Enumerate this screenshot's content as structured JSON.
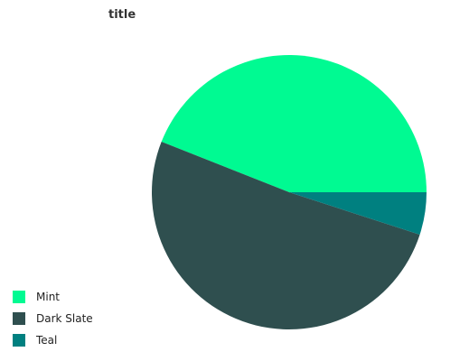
{
  "chart_data": {
    "type": "pie",
    "title": "title",
    "categories": [
      "Mint",
      "Dark Slate",
      "Teal"
    ],
    "values": [
      44,
      51,
      5
    ],
    "colors": [
      "#00fa92",
      "#2f4f4f",
      "#008080"
    ],
    "legend": "bottom-left"
  }
}
